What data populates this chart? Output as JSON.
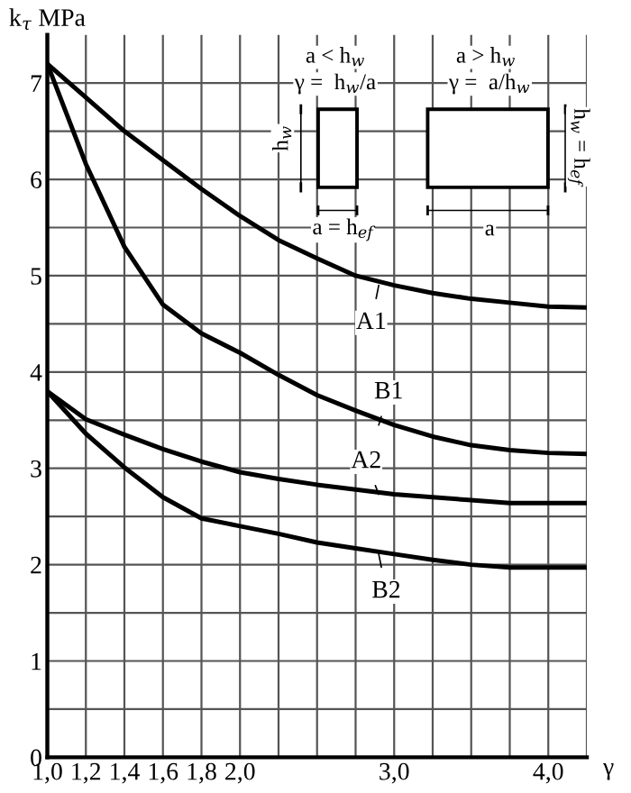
{
  "chart_data": {
    "type": "line",
    "ylabel": "k$_{τ}$ MPa",
    "xlabel": "γ",
    "categories": [
      "1,0",
      "1,2",
      "1,4",
      "1,6",
      "1,8",
      "2,0",
      null,
      null,
      null,
      "3,0",
      null,
      null,
      null,
      "4,0",
      null
    ],
    "series": [
      {
        "name": "A1",
        "color": "#000000",
        "values": [
          7.2,
          6.85,
          6.5,
          6.2,
          5.9,
          5.62,
          5.37,
          5.18,
          5.0,
          4.9,
          4.82,
          4.76,
          4.72,
          4.68,
          4.67
        ]
      },
      {
        "name": "B1",
        "color": "#000000",
        "values": [
          7.2,
          6.16,
          5.3,
          4.7,
          4.4,
          4.2,
          3.97,
          3.76,
          3.6,
          3.45,
          3.33,
          3.24,
          3.19,
          3.16,
          3.15
        ]
      },
      {
        "name": "A2",
        "color": "#000000",
        "values": [
          3.8,
          3.51,
          3.35,
          3.2,
          3.07,
          2.96,
          2.89,
          2.83,
          2.78,
          2.73,
          2.7,
          2.67,
          2.64,
          2.64,
          2.64
        ]
      },
      {
        "name": "B2",
        "color": "#000000",
        "values": [
          3.8,
          3.36,
          3.01,
          2.7,
          2.48,
          2.4,
          2.32,
          2.23,
          2.17,
          2.11,
          2.05,
          2.0,
          1.97,
          1.97,
          1.97
        ]
      }
    ],
    "annotations": [
      "a < h$_{w}$",
      "γ =  h$_{w}$/a",
      "h$_{w}$",
      "a = h$_{ef}$",
      "a > h$_{w}$",
      "γ =  a/h$_{w}$",
      "h$_{w}$ = h$_{ef}$",
      "a"
    ],
    "ylim": [
      0,
      7.5
    ],
    "yticks": [
      0,
      {
        "value": 0.5,
        "label": null
      },
      1,
      {
        "value": 1.5,
        "label": null
      },
      2,
      {
        "value": 2.5,
        "label": null
      },
      3,
      {
        "value": 3.5,
        "label": null
      },
      4,
      {
        "value": 4.5,
        "label": null
      },
      5,
      {
        "value": 5.5,
        "label": null
      },
      6,
      {
        "value": 6.5,
        "label": null
      },
      7
    ],
    "grid": true,
    "legend": "center",
    "marker": "none",
    "line_style": "solid"
  }
}
